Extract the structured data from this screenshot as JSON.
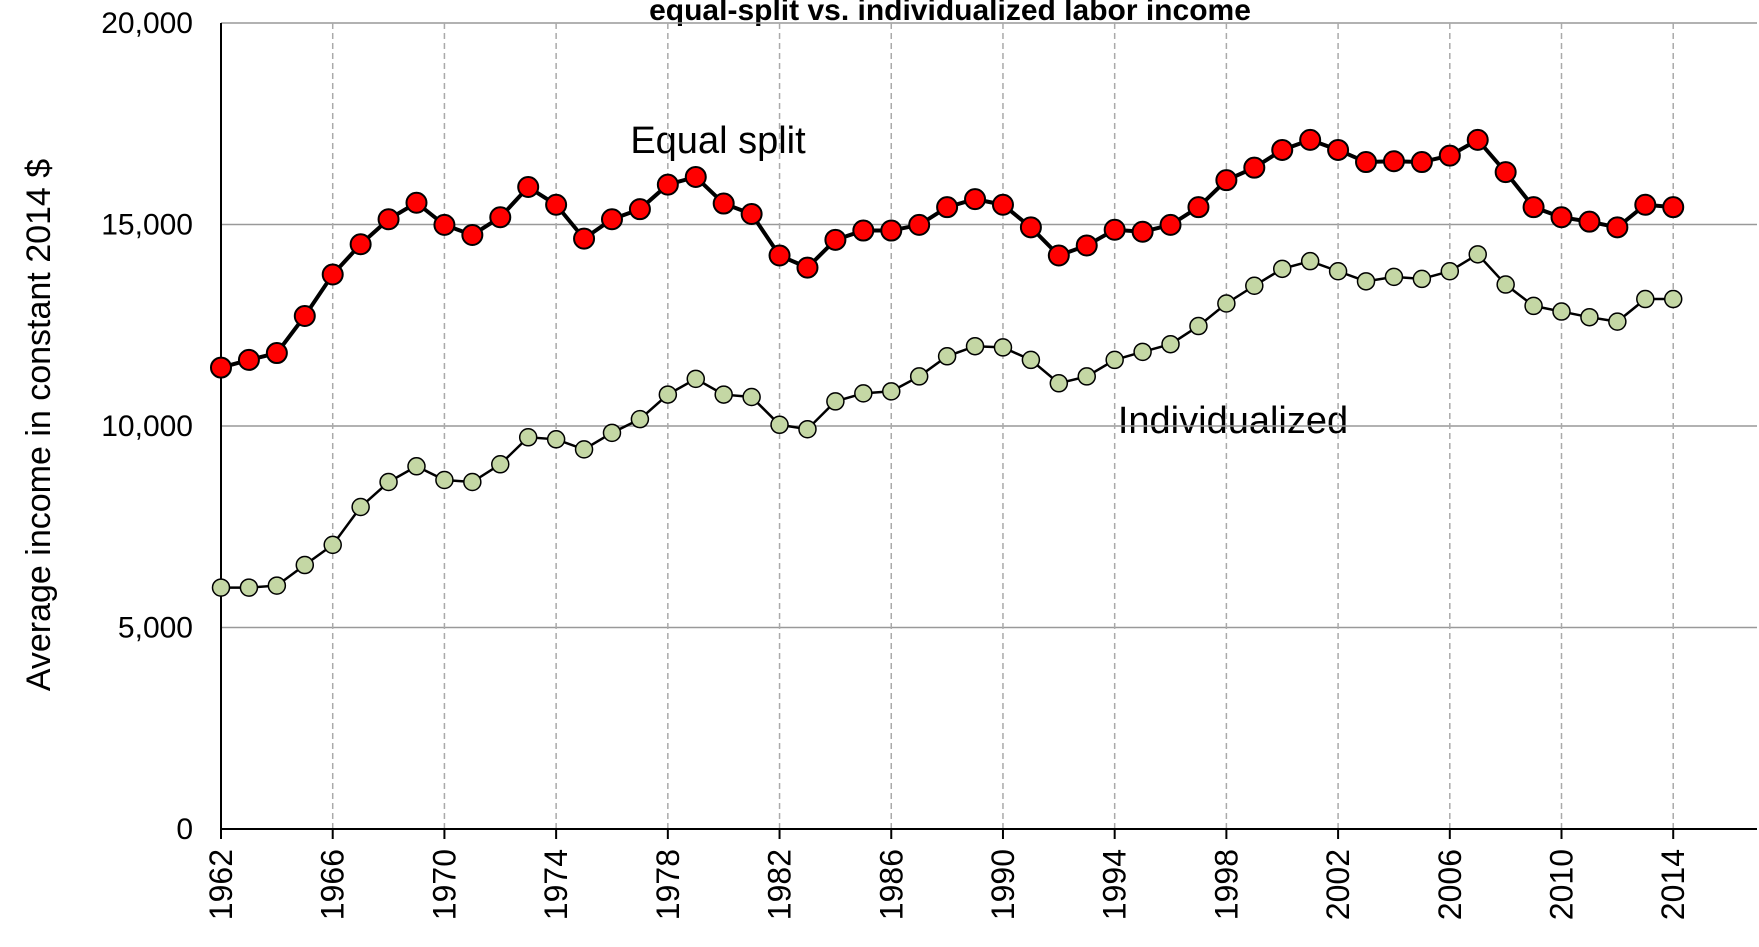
{
  "chart_data": {
    "type": "line",
    "title": "equal-split vs. individualized labor income",
    "y_label": "Average income in constant 2014 $",
    "annotations": [
      "Equal split",
      "Individualized"
    ],
    "x": [
      1962,
      1963,
      1964,
      1965,
      1966,
      1967,
      1968,
      1969,
      1970,
      1971,
      1972,
      1973,
      1974,
      1975,
      1976,
      1977,
      1978,
      1979,
      1980,
      1981,
      1982,
      1983,
      1984,
      1985,
      1986,
      1987,
      1988,
      1989,
      1990,
      1991,
      1992,
      1993,
      1994,
      1995,
      1996,
      1997,
      1998,
      1999,
      2000,
      2001,
      2002,
      2003,
      2004,
      2005,
      2006,
      2007,
      2008,
      2009,
      2010,
      2011,
      2012,
      2013,
      2014
    ],
    "series": [
      {
        "name": "Equal split",
        "color": "#ff0000",
        "line_color": "#000000",
        "values": [
          11450,
          11640,
          11810,
          12730,
          13760,
          14510,
          15130,
          15540,
          14990,
          14740,
          15180,
          15930,
          15490,
          14650,
          15130,
          15380,
          15990,
          16180,
          15520,
          15260,
          14230,
          13930,
          14620,
          14850,
          14850,
          14990,
          15430,
          15630,
          15490,
          14930,
          14230,
          14480,
          14870,
          14820,
          14990,
          15430,
          16100,
          16410,
          16850,
          17100,
          16850,
          16550,
          16570,
          16550,
          16710,
          17100,
          16300,
          15430,
          15180,
          15070,
          14930,
          15490,
          15430
        ]
      },
      {
        "name": "Individualized",
        "color": "#c4d7a4",
        "line_color": "#000000",
        "values": [
          5990,
          5990,
          6040,
          6550,
          7050,
          7990,
          8610,
          9000,
          8660,
          8610,
          9050,
          9720,
          9670,
          9420,
          9830,
          10170,
          10780,
          11170,
          10780,
          10720,
          10030,
          9920,
          10610,
          10810,
          10860,
          11230,
          11730,
          11980,
          11950,
          11640,
          11060,
          11230,
          11640,
          11840,
          12030,
          12480,
          13040,
          13480,
          13900,
          14090,
          13840,
          13590,
          13700,
          13650,
          13840,
          14260,
          13510,
          12980,
          12840,
          12700,
          12590,
          13150,
          13150
        ]
      }
    ],
    "xlim": [
      1962,
      2017
    ],
    "xticks": [
      1962,
      1966,
      1970,
      1974,
      1978,
      1982,
      1986,
      1990,
      1994,
      1998,
      2002,
      2006,
      2010,
      2014
    ],
    "ylim": [
      0,
      20000
    ],
    "yticks": [
      0,
      {
        "value": 5000,
        "label": "5,000"
      },
      {
        "value": 10000,
        "label": "10,000"
      },
      {
        "value": 15000,
        "label": "15,000"
      },
      {
        "value": 20000,
        "label": "20,000"
      }
    ],
    "grid": true
  }
}
